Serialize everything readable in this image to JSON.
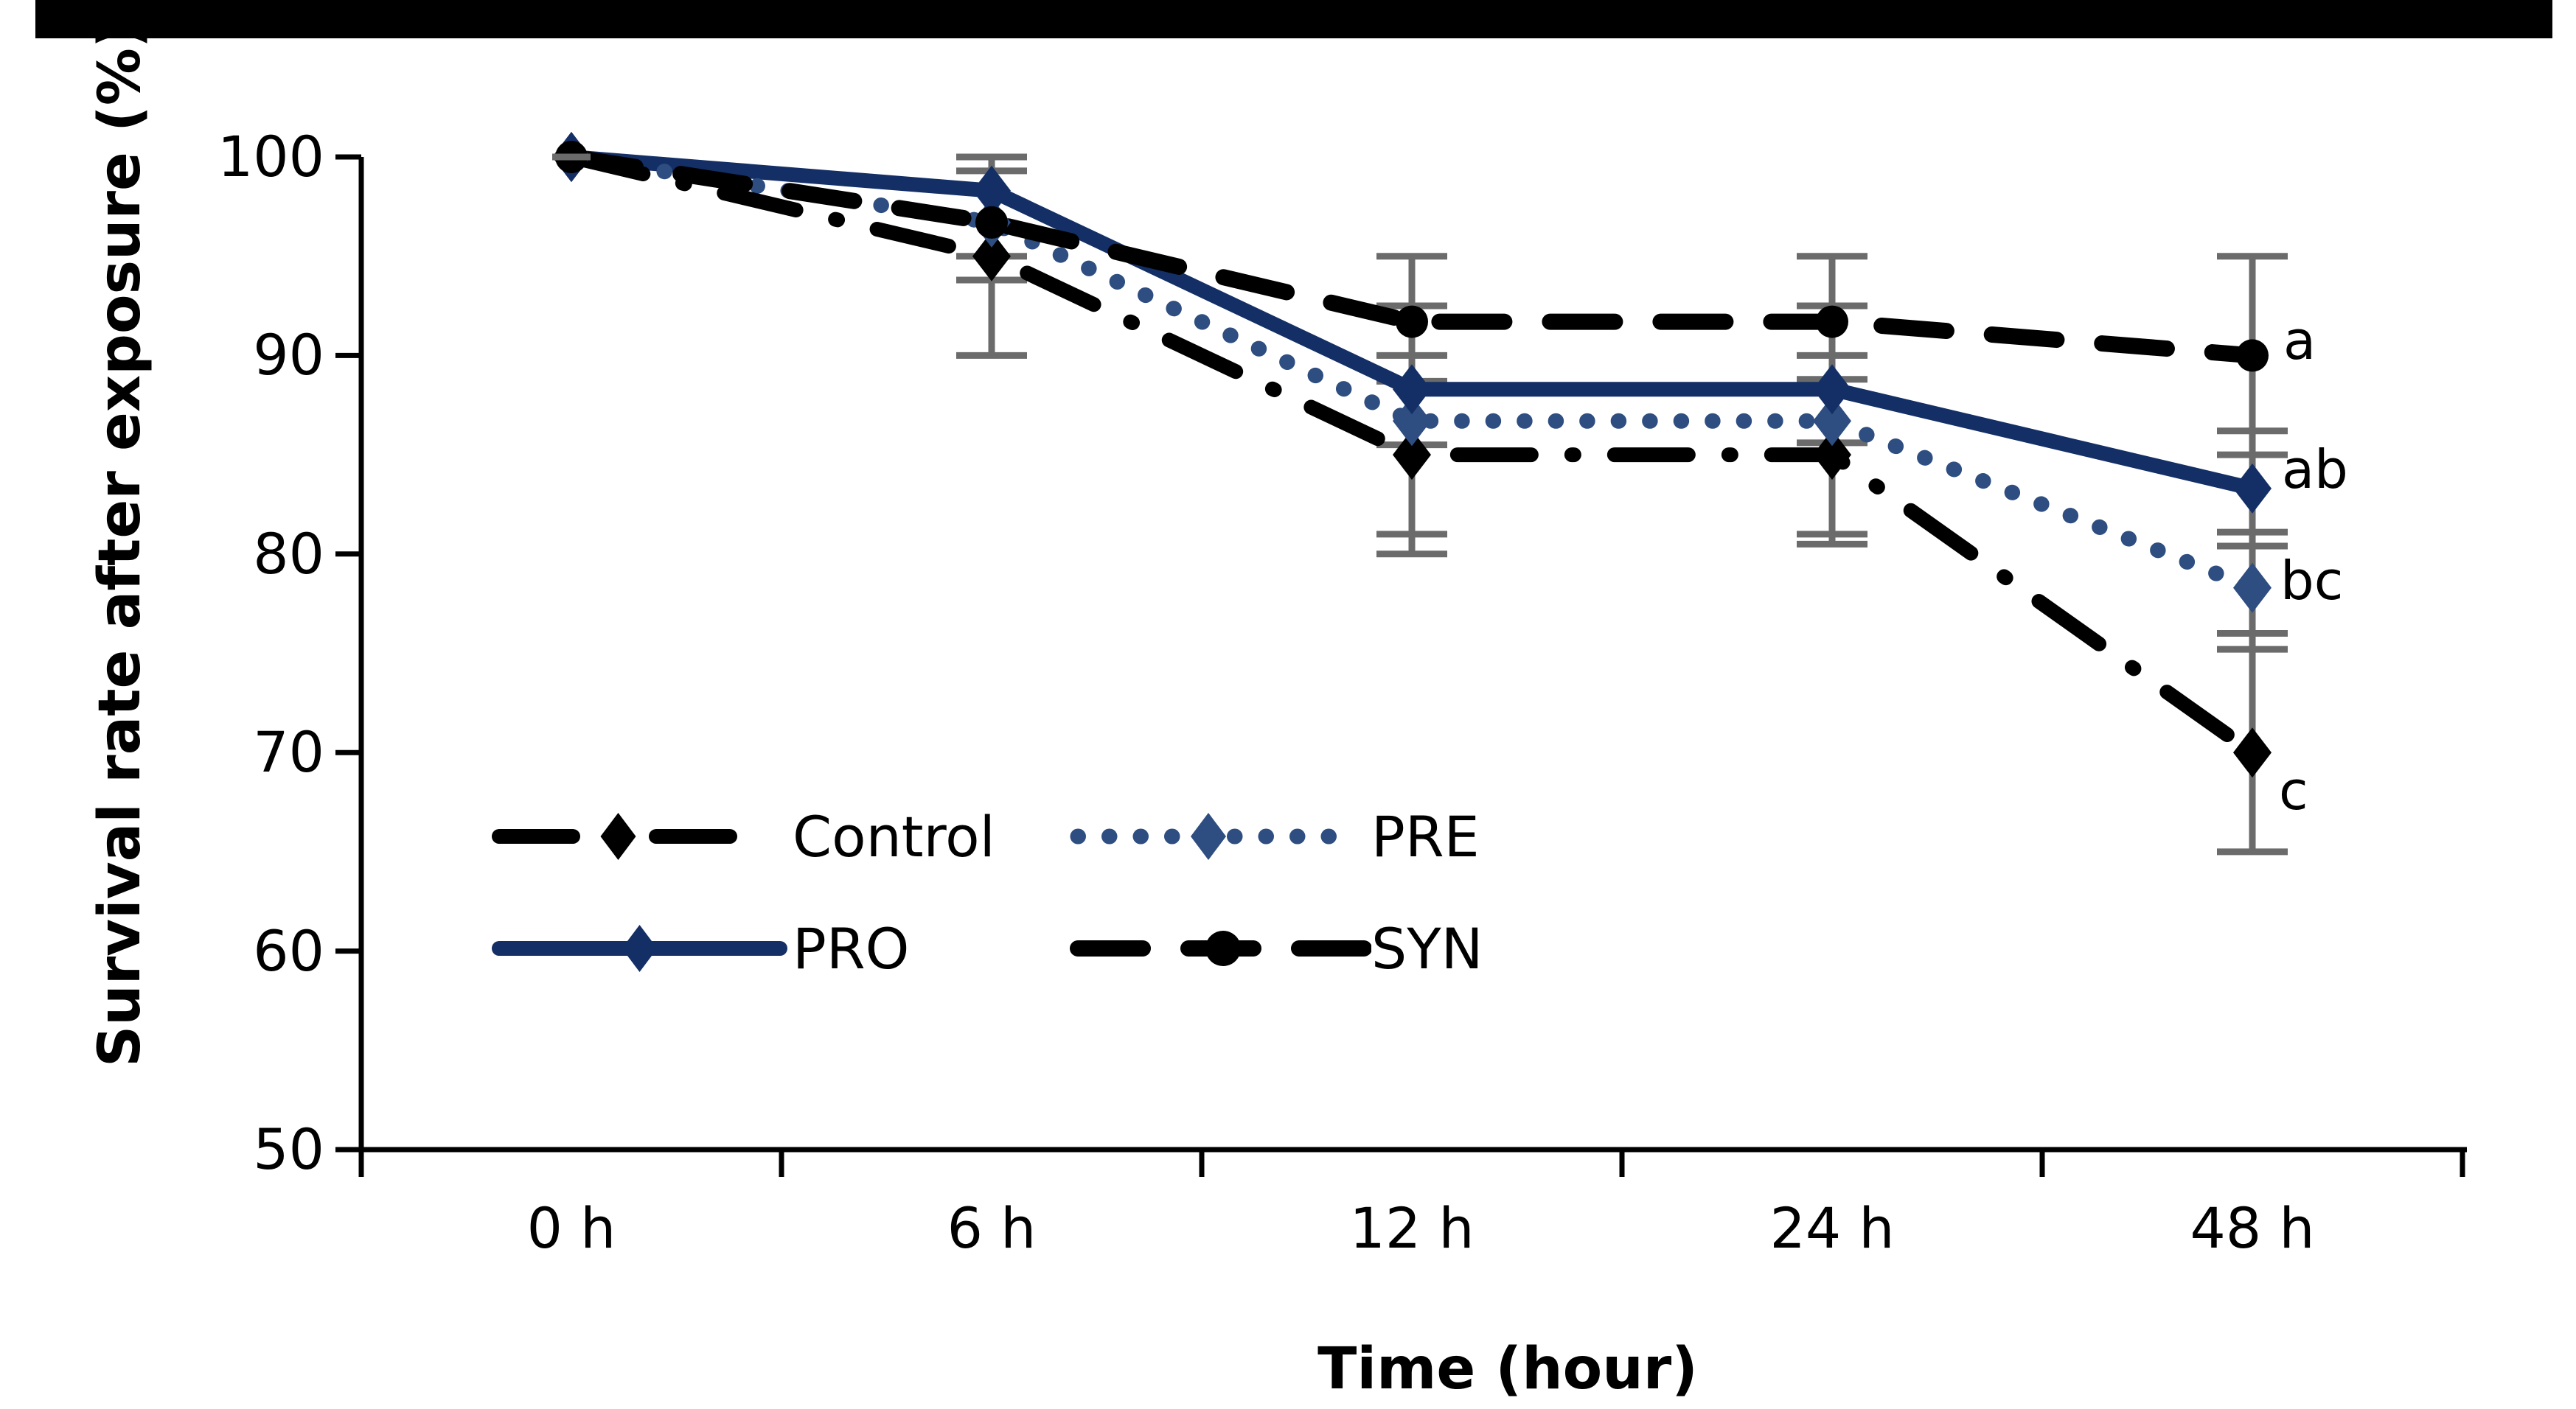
{
  "figure": {
    "background": "#ffffff",
    "top_bar_color": "#000000",
    "error_bar_color": "#6b6b6b",
    "axis_color": "#000000"
  },
  "chart_data": {
    "type": "line",
    "title": "",
    "xlabel": "Time (hour)",
    "ylabel": "Survival rate after exposure (%)",
    "categories": [
      "0 h",
      "6 h",
      "12 h",
      "24 h",
      "48 h"
    ],
    "ylim": [
      50,
      100
    ],
    "yticks": [
      100,
      90,
      80,
      70,
      60,
      50
    ],
    "grid": false,
    "legend_position": "inside lower-left, two columns, no frame",
    "series": [
      {
        "name": "Control",
        "style": "dashdot",
        "color": "#000000",
        "marker": "diamond",
        "values": [
          100,
          95,
          85,
          85,
          70
        ],
        "end_label": "c"
      },
      {
        "name": "PRE",
        "style": "dotted",
        "color": "#2e4d80",
        "marker": "diamond",
        "values": [
          100,
          96.7,
          86.7,
          86.7,
          78.3
        ],
        "end_label": "bc"
      },
      {
        "name": "PRO",
        "style": "solid",
        "color": "#132f66",
        "marker": "diamond",
        "values": [
          100,
          98.3,
          88.3,
          88.3,
          83.3
        ],
        "end_label": "ab"
      },
      {
        "name": "SYN",
        "style": "dashed",
        "color": "#000000",
        "marker": "circle",
        "values": [
          100,
          96.7,
          91.7,
          91.7,
          90
        ],
        "end_label": "a"
      }
    ],
    "error_bars": [
      {
        "x_index": 0,
        "from": 100,
        "to": 100,
        "caps": [
          100
        ]
      },
      {
        "x_index": 1,
        "from": 90,
        "to": 100,
        "caps": [
          100,
          99.3,
          95,
          93.8,
          90
        ]
      },
      {
        "x_index": 2,
        "from": 80,
        "to": 95,
        "caps": [
          95,
          92.5,
          90,
          88.7,
          85.5,
          81,
          80
        ]
      },
      {
        "x_index": 3,
        "from": 80.5,
        "to": 95,
        "caps": [
          95,
          92.5,
          90,
          88.8,
          85.6,
          81,
          80.5
        ]
      },
      {
        "x_index": 4,
        "from": 65,
        "to": 95,
        "caps": [
          95,
          86.2,
          85.0,
          81.1,
          80.4,
          76,
          75.2,
          65
        ]
      }
    ],
    "significance_labels": [
      {
        "text": "a",
        "series": "SYN"
      },
      {
        "text": "ab",
        "series": "PRO"
      },
      {
        "text": "bc",
        "series": "PRE"
      },
      {
        "text": "c",
        "series": "Control"
      }
    ]
  },
  "legend": {
    "items": [
      {
        "label": "Control"
      },
      {
        "label": "PRE"
      },
      {
        "label": "PRO"
      },
      {
        "label": "SYN"
      }
    ]
  }
}
